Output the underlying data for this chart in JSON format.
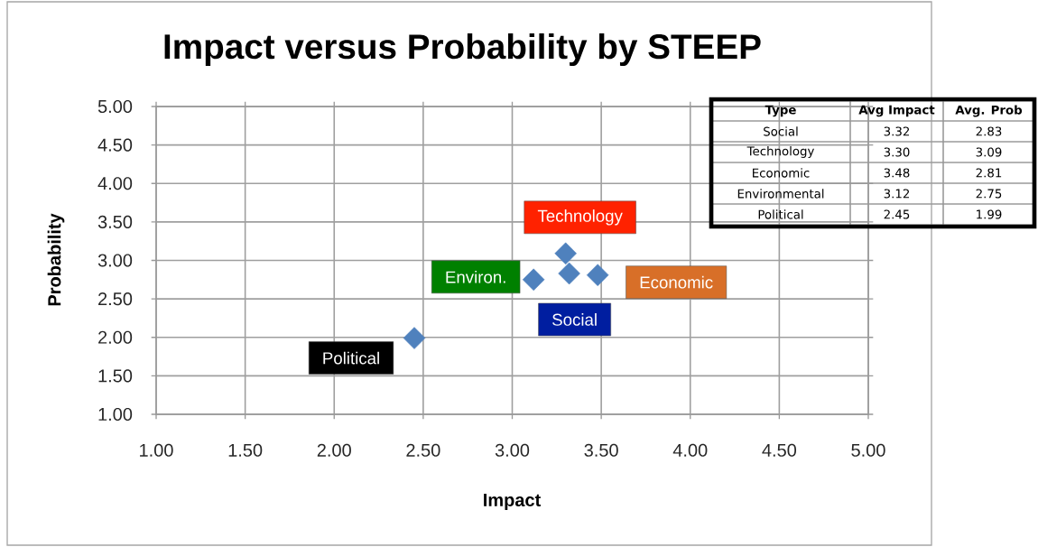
{
  "chart_data": {
    "type": "scatter",
    "title": "Impact versus Probability by STEEP",
    "xlabel": "Impact",
    "ylabel": "Probability",
    "series": [
      {
        "color": "#4f81bd",
        "x": [
          3.32,
          3.3,
          3.48,
          3.12,
          2.45
        ],
        "values": [
          2.83,
          3.09,
          2.81,
          2.75,
          1.99
        ]
      }
    ],
    "marker": "diamond",
    "grid": true,
    "xlim": [
      1,
      5
    ],
    "ylim": [
      1,
      5
    ],
    "xticks": [
      {
        "value": 1,
        "label": "1.00"
      },
      {
        "value": 1.5,
        "label": "1.50"
      },
      {
        "value": 2,
        "label": "2.00"
      },
      {
        "value": 2.5,
        "label": "2.50"
      },
      {
        "value": 3,
        "label": "3.00"
      },
      {
        "value": 3.5,
        "label": "3.50"
      },
      {
        "value": 4,
        "label": "4.00"
      },
      {
        "value": 4.5,
        "label": "4.50"
      },
      {
        "value": 5,
        "label": "5.00"
      }
    ],
    "yticks": [
      {
        "value": 1,
        "label": "1.00"
      },
      {
        "value": 1.5,
        "label": "1.50"
      },
      {
        "value": 2,
        "label": "2.00"
      },
      {
        "value": 2.5,
        "label": "2.50"
      },
      {
        "value": 3,
        "label": "3.00"
      },
      {
        "value": 3.5,
        "label": "3.50"
      },
      {
        "value": 4,
        "label": "4.00"
      },
      {
        "value": 4.5,
        "label": "4.50"
      },
      {
        "value": 5,
        "label": "5.00"
      }
    ],
    "annotations": [
      {
        "text": "Social",
        "x": 3.32,
        "y": 2.83
      },
      {
        "text": "Technology",
        "x": 3.3,
        "y": 3.09
      },
      {
        "text": "Economic",
        "x": 3.48,
        "y": 2.81
      },
      {
        "text": "Environ.",
        "x": 3.12,
        "y": 2.75
      },
      {
        "text": "Political",
        "x": 2.45,
        "y": 1.99
      },
      "Type",
      "Avg Impact",
      "Avg. Prob",
      "Social",
      "3.32",
      "2.83",
      "Technology",
      "3.30",
      "3.09",
      "Economic",
      "3.48",
      "2.81",
      "Environmental",
      "3.12",
      "2.75",
      "Political",
      "2.45",
      "1.99"
    ]
  }
}
